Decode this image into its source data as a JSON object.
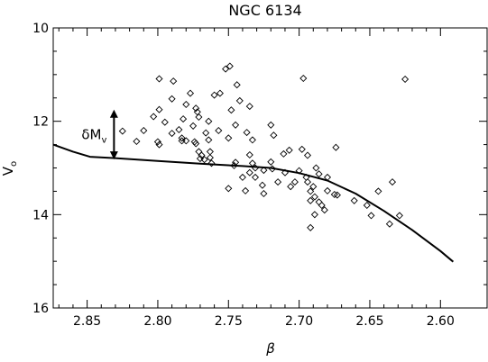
{
  "chart_data": {
    "type": "scatter",
    "title": "NGC 6134",
    "xlabel": "β",
    "ylabel_main": "V",
    "ylabel_sub": "o",
    "xlim": [
      2.874,
      2.567
    ],
    "ylim": [
      16,
      10
    ],
    "x_ticks": [
      2.85,
      2.8,
      2.75,
      2.7,
      2.65,
      2.6
    ],
    "x_tick_labels": [
      "2.85",
      "2.80",
      "2.75",
      "2.70",
      "2.65",
      "2.60"
    ],
    "y_ticks": [
      10,
      12,
      14,
      16
    ],
    "y_tick_labels": [
      "10",
      "12",
      "14",
      "16"
    ],
    "annotation": {
      "main": "δM",
      "sub": "v",
      "x": 2.831,
      "y_top": 11.75,
      "y_bottom": 12.82
    },
    "series": [
      {
        "kind": "points",
        "marker": "diamond",
        "points": [
          [
            2.799,
            11.09
          ],
          [
            2.789,
            11.14
          ],
          [
            2.749,
            10.82
          ],
          [
            2.752,
            10.88
          ],
          [
            2.697,
            11.08
          ],
          [
            2.625,
            11.1
          ],
          [
            2.777,
            11.4
          ],
          [
            2.744,
            11.22
          ],
          [
            2.756,
            11.4
          ],
          [
            2.76,
            11.44
          ],
          [
            2.79,
            11.52
          ],
          [
            2.78,
            11.64
          ],
          [
            2.799,
            11.75
          ],
          [
            2.773,
            11.72
          ],
          [
            2.803,
            11.9
          ],
          [
            2.782,
            11.95
          ],
          [
            2.742,
            11.56
          ],
          [
            2.735,
            11.68
          ],
          [
            2.748,
            11.76
          ],
          [
            2.772,
            11.8
          ],
          [
            2.771,
            11.91
          ],
          [
            2.764,
            12.0
          ],
          [
            2.745,
            12.08
          ],
          [
            2.72,
            12.08
          ],
          [
            2.81,
            12.2
          ],
          [
            2.79,
            12.26
          ],
          [
            2.783,
            12.36
          ],
          [
            2.78,
            12.42
          ],
          [
            2.774,
            12.44
          ],
          [
            2.8,
            12.44
          ],
          [
            2.795,
            12.02
          ],
          [
            2.785,
            12.18
          ],
          [
            2.775,
            12.1
          ],
          [
            2.766,
            12.25
          ],
          [
            2.757,
            12.2
          ],
          [
            2.75,
            12.36
          ],
          [
            2.733,
            12.4
          ],
          [
            2.718,
            12.3
          ],
          [
            2.737,
            12.24
          ],
          [
            2.764,
            12.4
          ],
          [
            2.77,
            12.8
          ],
          [
            2.767,
            12.82
          ],
          [
            2.763,
            12.78
          ],
          [
            2.762,
            12.9
          ],
          [
            2.763,
            12.65
          ],
          [
            2.735,
            12.72
          ],
          [
            2.733,
            12.9
          ],
          [
            2.745,
            12.88
          ],
          [
            2.72,
            12.87
          ],
          [
            2.711,
            12.7
          ],
          [
            2.707,
            12.62
          ],
          [
            2.698,
            12.6
          ],
          [
            2.694,
            12.73
          ],
          [
            2.674,
            12.56
          ],
          [
            2.825,
            12.21
          ],
          [
            2.815,
            12.43
          ],
          [
            2.799,
            12.5
          ],
          [
            2.783,
            12.42
          ],
          [
            2.771,
            12.65
          ],
          [
            2.769,
            12.73
          ],
          [
            2.773,
            12.48
          ],
          [
            2.746,
            12.95
          ],
          [
            2.74,
            13.2
          ],
          [
            2.735,
            13.1
          ],
          [
            2.725,
            13.05
          ],
          [
            2.731,
            13.0
          ],
          [
            2.719,
            13.02
          ],
          [
            2.71,
            13.1
          ],
          [
            2.7,
            13.06
          ],
          [
            2.695,
            13.2
          ],
          [
            2.688,
            13.0
          ],
          [
            2.686,
            13.13
          ],
          [
            2.68,
            13.2
          ],
          [
            2.694,
            13.3
          ],
          [
            2.703,
            13.3
          ],
          [
            2.706,
            13.4
          ],
          [
            2.715,
            13.3
          ],
          [
            2.726,
            13.37
          ],
          [
            2.731,
            13.2
          ],
          [
            2.738,
            13.49
          ],
          [
            2.75,
            13.44
          ],
          [
            2.725,
            13.55
          ],
          [
            2.692,
            13.5
          ],
          [
            2.689,
            13.62
          ],
          [
            2.686,
            13.73
          ],
          [
            2.684,
            13.8
          ],
          [
            2.692,
            13.7
          ],
          [
            2.68,
            13.49
          ],
          [
            2.69,
            13.4
          ],
          [
            2.675,
            13.57
          ],
          [
            2.673,
            13.58
          ],
          [
            2.682,
            13.9
          ],
          [
            2.689,
            14.0
          ],
          [
            2.692,
            14.28
          ],
          [
            2.661,
            13.7
          ],
          [
            2.652,
            13.8
          ],
          [
            2.644,
            13.5
          ],
          [
            2.649,
            14.02
          ],
          [
            2.634,
            13.3
          ],
          [
            2.636,
            14.2
          ],
          [
            2.629,
            14.02
          ]
        ]
      },
      {
        "kind": "line",
        "points": [
          [
            2.874,
            12.5
          ],
          [
            2.86,
            12.65
          ],
          [
            2.848,
            12.76
          ],
          [
            2.83,
            12.79
          ],
          [
            2.8,
            12.85
          ],
          [
            2.77,
            12.91
          ],
          [
            2.74,
            12.96
          ],
          [
            2.72,
            13.0
          ],
          [
            2.7,
            13.11
          ],
          [
            2.68,
            13.27
          ],
          [
            2.66,
            13.55
          ],
          [
            2.64,
            13.92
          ],
          [
            2.62,
            14.33
          ],
          [
            2.6,
            14.78
          ],
          [
            2.591,
            15.01
          ]
        ]
      }
    ]
  }
}
